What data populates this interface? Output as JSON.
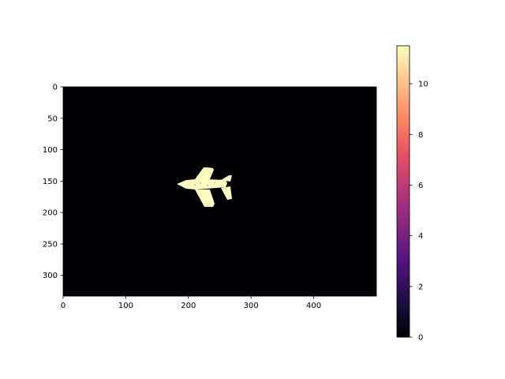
{
  "chart_data": {
    "type": "heatmap",
    "title": "",
    "xlabel": "",
    "ylabel": "",
    "image_size": [
      500,
      333
    ],
    "xlim": [
      0,
      500
    ],
    "ylim": [
      333,
      0
    ],
    "x_ticks": [
      "0",
      "100",
      "200",
      "300",
      "400"
    ],
    "y_ticks": [
      "0",
      "50",
      "100",
      "150",
      "200",
      "250",
      "300"
    ],
    "colormap": "magma",
    "colorbar": {
      "range": [
        0,
        11.5
      ],
      "ticks": [
        "0",
        "2",
        "4",
        "6",
        "8",
        "10"
      ]
    },
    "background_value": 0,
    "object_value": 11.5,
    "object": "fighter jet silhouette",
    "object_extent": {
      "x": [
        183,
        270
      ],
      "y": [
        126,
        192
      ]
    },
    "colors": {
      "background": "#000004",
      "object": "#fcfdbf",
      "speckle": "#fc8961"
    }
  }
}
